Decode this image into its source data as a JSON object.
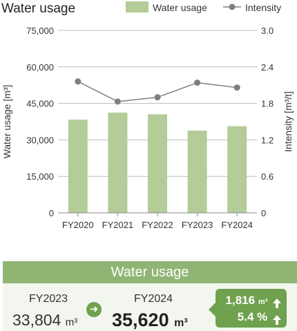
{
  "chart_data": {
    "type": "bar",
    "title": "Water usage",
    "categories": [
      "FY2020",
      "FY2021",
      "FY2022",
      "FY2023",
      "FY2024"
    ],
    "series": [
      {
        "name": "Water usage",
        "type": "bar",
        "axis": "left",
        "values": [
          38300,
          41200,
          40500,
          33804,
          35620
        ]
      },
      {
        "name": "Intensity",
        "type": "line",
        "axis": "right",
        "values": [
          2.16,
          1.83,
          1.9,
          2.14,
          2.06
        ]
      }
    ],
    "ylabel": "Water usage [m³]",
    "y2label": "Intensity [m³/t]",
    "ylim": [
      0,
      75000
    ],
    "y2lim": [
      0,
      3.0
    ],
    "yticks": [
      "0",
      "15,000",
      "30,000",
      "45,000",
      "60,000",
      "75,000"
    ],
    "y2ticks": [
      "0",
      "0.6",
      "1.2",
      "1.8",
      "2.4",
      "3.0"
    ],
    "legend_position": "top-right",
    "grid": true,
    "colors": {
      "bar": "#b4cc97",
      "line": "#7f7f7f",
      "grid": "#bbbbbb"
    }
  },
  "summary": {
    "title": "Water usage",
    "prev_year": "FY2023",
    "prev_value": "33,804",
    "prev_unit": "m³",
    "cur_year": "FY2024",
    "cur_value": "35,620",
    "cur_unit": "m³",
    "diff_value": "1,816",
    "diff_unit": "m³",
    "diff_percent": "5.4",
    "percent_unit": "%",
    "arrow_icon": "arrow-right-icon",
    "up_icon": "arrow-up-icon"
  }
}
